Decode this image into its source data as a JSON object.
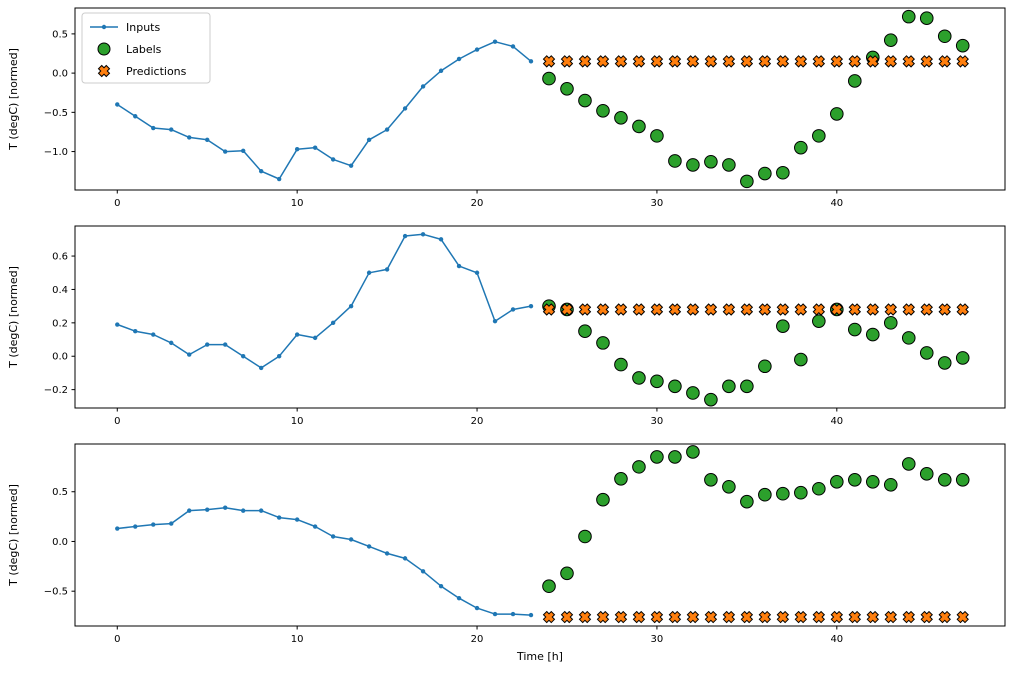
{
  "figure": {
    "background": "#ffffff",
    "axis_color": "#000000",
    "legend": {
      "position": "upper left",
      "border_color": "#cccccc",
      "entries": [
        "Inputs",
        "Labels",
        "Predictions"
      ]
    }
  },
  "chart_data": [
    {
      "type": "line",
      "title": "",
      "xlabel": "",
      "ylabel": "T (degC) [normed]",
      "xlim": [
        -2.35,
        49.35
      ],
      "ylim": [
        -1.49,
        0.83
      ],
      "xticks": [
        0,
        10,
        20,
        30,
        40
      ],
      "yticks": [
        -1.0,
        -0.5,
        0.0,
        0.5
      ],
      "grid": false,
      "series": [
        {
          "name": "Inputs",
          "marker": "line-dot",
          "color": "#1f77b4",
          "x": [
            0,
            1,
            2,
            3,
            4,
            5,
            6,
            7,
            8,
            9,
            10,
            11,
            12,
            13,
            14,
            15,
            16,
            17,
            18,
            19,
            20,
            21,
            22,
            23
          ],
          "y": [
            -0.4,
            -0.55,
            -0.7,
            -0.72,
            -0.82,
            -0.85,
            -1.0,
            -0.99,
            -1.25,
            -1.35,
            -0.97,
            -0.95,
            -1.1,
            -1.18,
            -0.85,
            -0.72,
            -0.45,
            -0.17,
            0.03,
            0.18,
            0.3,
            0.4,
            0.34,
            0.15
          ]
        },
        {
          "name": "Labels",
          "marker": "circle",
          "color": "#2ca02c",
          "x": [
            24,
            25,
            26,
            27,
            28,
            29,
            30,
            31,
            32,
            33,
            34,
            35,
            36,
            37,
            38,
            39,
            40,
            41,
            42,
            43,
            44,
            45,
            46,
            47
          ],
          "y": [
            -0.07,
            -0.2,
            -0.35,
            -0.48,
            -0.57,
            -0.68,
            -0.8,
            -1.12,
            -1.17,
            -1.13,
            -1.17,
            -1.38,
            -1.28,
            -1.27,
            -0.95,
            -0.8,
            -0.52,
            -0.1,
            0.2,
            0.42,
            0.72,
            0.7,
            0.47,
            0.35
          ]
        },
        {
          "name": "Predictions",
          "marker": "X",
          "color": "#ff7f0e",
          "x": [
            24,
            25,
            26,
            27,
            28,
            29,
            30,
            31,
            32,
            33,
            34,
            35,
            36,
            37,
            38,
            39,
            40,
            41,
            42,
            43,
            44,
            45,
            46,
            47
          ],
          "y": [
            0.15,
            0.15,
            0.15,
            0.15,
            0.15,
            0.15,
            0.15,
            0.15,
            0.15,
            0.15,
            0.15,
            0.15,
            0.15,
            0.15,
            0.15,
            0.15,
            0.15,
            0.15,
            0.15,
            0.15,
            0.15,
            0.15,
            0.15,
            0.15
          ]
        }
      ]
    },
    {
      "type": "line",
      "title": "",
      "xlabel": "",
      "ylabel": "T (degC) [normed]",
      "xlim": [
        -2.35,
        49.35
      ],
      "ylim": [
        -0.31,
        0.78
      ],
      "xticks": [
        0,
        10,
        20,
        30,
        40
      ],
      "yticks": [
        -0.2,
        0.0,
        0.2,
        0.4,
        0.6
      ],
      "grid": false,
      "series": [
        {
          "name": "Inputs",
          "marker": "line-dot",
          "color": "#1f77b4",
          "x": [
            0,
            1,
            2,
            3,
            4,
            5,
            6,
            7,
            8,
            9,
            10,
            11,
            12,
            13,
            14,
            15,
            16,
            17,
            18,
            19,
            20,
            21,
            22,
            23
          ],
          "y": [
            0.19,
            0.15,
            0.13,
            0.08,
            0.01,
            0.07,
            0.07,
            0.0,
            -0.07,
            0.0,
            0.13,
            0.11,
            0.2,
            0.3,
            0.5,
            0.52,
            0.72,
            0.73,
            0.7,
            0.54,
            0.5,
            0.21,
            0.28,
            0.3
          ]
        },
        {
          "name": "Labels",
          "marker": "circle",
          "color": "#2ca02c",
          "x": [
            24,
            25,
            26,
            27,
            28,
            29,
            30,
            31,
            32,
            33,
            34,
            35,
            36,
            37,
            38,
            39,
            40,
            41,
            42,
            43,
            44,
            45,
            46,
            47
          ],
          "y": [
            0.3,
            0.28,
            0.15,
            0.08,
            -0.05,
            -0.13,
            -0.15,
            -0.18,
            -0.22,
            -0.26,
            -0.18,
            -0.18,
            -0.06,
            0.18,
            -0.02,
            0.21,
            0.28,
            0.16,
            0.13,
            0.2,
            0.11,
            0.02,
            -0.04,
            -0.01
          ]
        },
        {
          "name": "Predictions",
          "marker": "X",
          "color": "#ff7f0e",
          "x": [
            24,
            25,
            26,
            27,
            28,
            29,
            30,
            31,
            32,
            33,
            34,
            35,
            36,
            37,
            38,
            39,
            40,
            41,
            42,
            43,
            44,
            45,
            46,
            47
          ],
          "y": [
            0.28,
            0.28,
            0.28,
            0.28,
            0.28,
            0.28,
            0.28,
            0.28,
            0.28,
            0.28,
            0.28,
            0.28,
            0.28,
            0.28,
            0.28,
            0.28,
            0.28,
            0.28,
            0.28,
            0.28,
            0.28,
            0.28,
            0.28,
            0.28
          ]
        }
      ]
    },
    {
      "type": "line",
      "title": "",
      "xlabel": "Time [h]",
      "ylabel": "T (degC) [normed]",
      "xlim": [
        -2.35,
        49.35
      ],
      "ylim": [
        -0.85,
        0.98
      ],
      "xticks": [
        0,
        10,
        20,
        30,
        40
      ],
      "yticks": [
        -0.5,
        0.0,
        0.5
      ],
      "grid": false,
      "series": [
        {
          "name": "Inputs",
          "marker": "line-dot",
          "color": "#1f77b4",
          "x": [
            0,
            1,
            2,
            3,
            4,
            5,
            6,
            7,
            8,
            9,
            10,
            11,
            12,
            13,
            14,
            15,
            16,
            17,
            18,
            19,
            20,
            21,
            22,
            23
          ],
          "y": [
            0.13,
            0.15,
            0.17,
            0.18,
            0.31,
            0.32,
            0.34,
            0.31,
            0.31,
            0.24,
            0.22,
            0.15,
            0.05,
            0.02,
            -0.05,
            -0.12,
            -0.17,
            -0.3,
            -0.45,
            -0.57,
            -0.67,
            -0.73,
            -0.73,
            -0.74
          ]
        },
        {
          "name": "Labels",
          "marker": "circle",
          "color": "#2ca02c",
          "x": [
            24,
            25,
            26,
            27,
            28,
            29,
            30,
            31,
            32,
            33,
            34,
            35,
            36,
            37,
            38,
            39,
            40,
            41,
            42,
            43,
            44,
            45,
            46,
            47
          ],
          "y": [
            -0.45,
            -0.32,
            0.05,
            0.42,
            0.63,
            0.75,
            0.85,
            0.85,
            0.9,
            0.62,
            0.55,
            0.4,
            0.47,
            0.48,
            0.49,
            0.53,
            0.6,
            0.62,
            0.6,
            0.57,
            0.78,
            0.68,
            0.62,
            0.62
          ]
        },
        {
          "name": "Predictions",
          "marker": "X",
          "color": "#ff7f0e",
          "x": [
            24,
            25,
            26,
            27,
            28,
            29,
            30,
            31,
            32,
            33,
            34,
            35,
            36,
            37,
            38,
            39,
            40,
            41,
            42,
            43,
            44,
            45,
            46,
            47
          ],
          "y": [
            -0.76,
            -0.76,
            -0.76,
            -0.76,
            -0.76,
            -0.76,
            -0.76,
            -0.76,
            -0.76,
            -0.76,
            -0.76,
            -0.76,
            -0.76,
            -0.76,
            -0.76,
            -0.76,
            -0.76,
            -0.76,
            -0.76,
            -0.76,
            -0.76,
            -0.76,
            -0.76,
            -0.76
          ]
        }
      ]
    }
  ]
}
